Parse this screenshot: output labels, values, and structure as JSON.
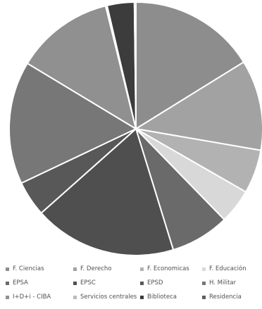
{
  "chart_data": {
    "type": "pie",
    "title": "",
    "start_angle_deg": 0,
    "direction": "clockwise",
    "legend_position": "bottom",
    "slices": [
      {
        "label": "F. Ciencias",
        "value": 16.8,
        "color": "#8d8d8d"
      },
      {
        "label": "F. Derecho",
        "value": 12.0,
        "color": "#a2a2a2"
      },
      {
        "label": "F. Economicas",
        "value": 5.8,
        "color": "#b2b2b2"
      },
      {
        "label": "F. Educación",
        "value": 4.6,
        "color": "#d8d8d8"
      },
      {
        "label": "EPSA",
        "value": 7.8,
        "color": "#6a6a6a"
      },
      {
        "label": "EPSC",
        "value": 18.9,
        "color": "#4f4f4f"
      },
      {
        "label": "EPSD",
        "value": 4.7,
        "color": "#585858"
      },
      {
        "label": "H. Militar",
        "value": 16.3,
        "color": "#777777"
      },
      {
        "label": "I+D+i - CIBA",
        "value": 13.0,
        "color": "#909090"
      },
      {
        "label": "Servicios centrales",
        "value": 0.2,
        "color": "#bcbcbc"
      },
      {
        "label": "Biblioteca",
        "value": 3.6,
        "color": "#3c3c3c"
      },
      {
        "label": "Residencia",
        "value": 0.2,
        "color": "#5e5e5e"
      }
    ]
  }
}
